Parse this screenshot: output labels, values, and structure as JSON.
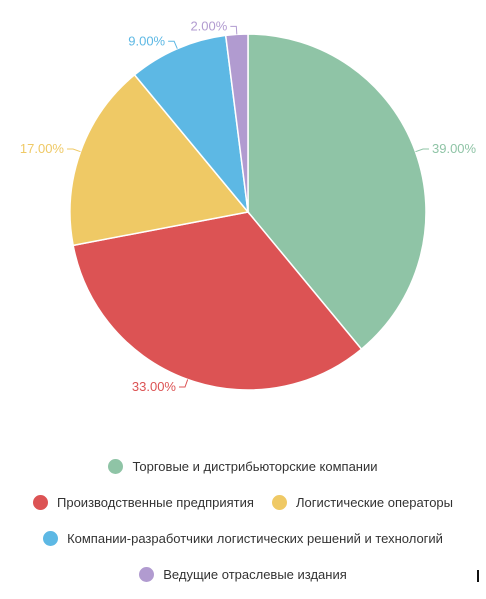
{
  "chart_data": {
    "type": "pie",
    "title": "",
    "categories": [
      "Торговые и дистрибьюторские компании",
      "Производственные предприятия",
      "Логистические операторы",
      "Компании-разработчики логистических решений и технологий",
      "Ведущие отраслевые издания"
    ],
    "values": [
      39,
      33,
      17,
      9,
      2
    ],
    "value_labels": [
      "39.00%",
      "33.00%",
      "17.00%",
      "9.00%",
      "2.00%"
    ],
    "colors": [
      "#8fc4a6",
      "#dc5354",
      "#efc965",
      "#5db8e4",
      "#b19bd0"
    ],
    "legend_position": "bottom"
  }
}
